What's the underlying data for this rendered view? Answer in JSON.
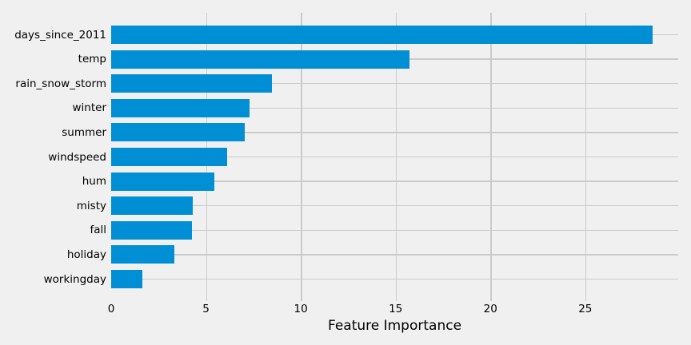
{
  "chart_data": {
    "type": "bar",
    "orientation": "horizontal",
    "title": "",
    "xlabel": "Feature Importance",
    "ylabel": "",
    "categories": [
      "days_since_2011",
      "temp",
      "rain_snow_storm",
      "winter",
      "summer",
      "windspeed",
      "hum",
      "misty",
      "fall",
      "holiday",
      "workingday"
    ],
    "values": [
      28.55,
      15.71,
      8.49,
      7.29,
      7.04,
      6.12,
      5.43,
      4.31,
      4.26,
      3.32,
      1.63
    ],
    "xticks": [
      0,
      5,
      10,
      15,
      20,
      25
    ],
    "xlim": [
      0,
      29.9
    ],
    "grid": true,
    "legend": false,
    "colors": {
      "bar": "#008fd5",
      "background": "#f0f0f0",
      "grid": "#cbcbcb",
      "text": "#000000"
    }
  }
}
